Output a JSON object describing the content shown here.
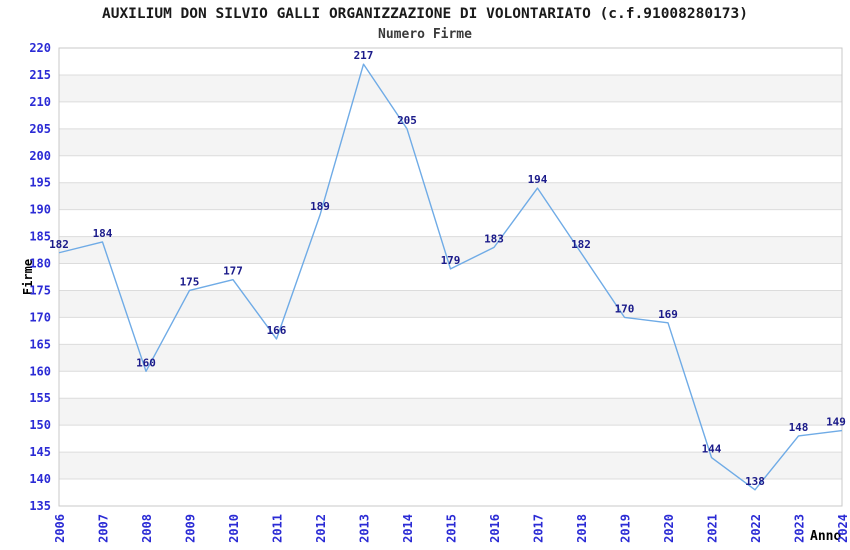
{
  "chart_data": {
    "type": "line",
    "title": "AUXILIUM DON SILVIO GALLI ORGANIZZAZIONE DI VOLONTARIATO (c.f.91008280173)",
    "subtitle": "Numero Firme",
    "xlabel": "Anno",
    "ylabel": "Firme",
    "categories": [
      "2006",
      "2007",
      "2008",
      "2009",
      "2010",
      "2011",
      "2012",
      "2013",
      "2014",
      "2015",
      "2016",
      "2017",
      "2018",
      "2019",
      "2020",
      "2021",
      "2022",
      "2023",
      "2024"
    ],
    "values": [
      182,
      184,
      160,
      175,
      177,
      166,
      189,
      217,
      205,
      179,
      183,
      194,
      182,
      170,
      169,
      144,
      138,
      148,
      149
    ],
    "ylim": [
      135,
      220
    ],
    "ytick_step": 5,
    "grid": true,
    "legend": "none",
    "plot_bands": "alternating-horizontal",
    "colors": {
      "line": "#6FABE6",
      "tick_label": "#2B2BD5",
      "data_label": "#1B1B8A",
      "band": "#F4F4F4",
      "gridline": "#DCDCDC",
      "plot_border": "#C9C9C9",
      "title": "#1A1A1A",
      "subtitle": "#3A3A3A",
      "axis_title": "#000000"
    }
  }
}
